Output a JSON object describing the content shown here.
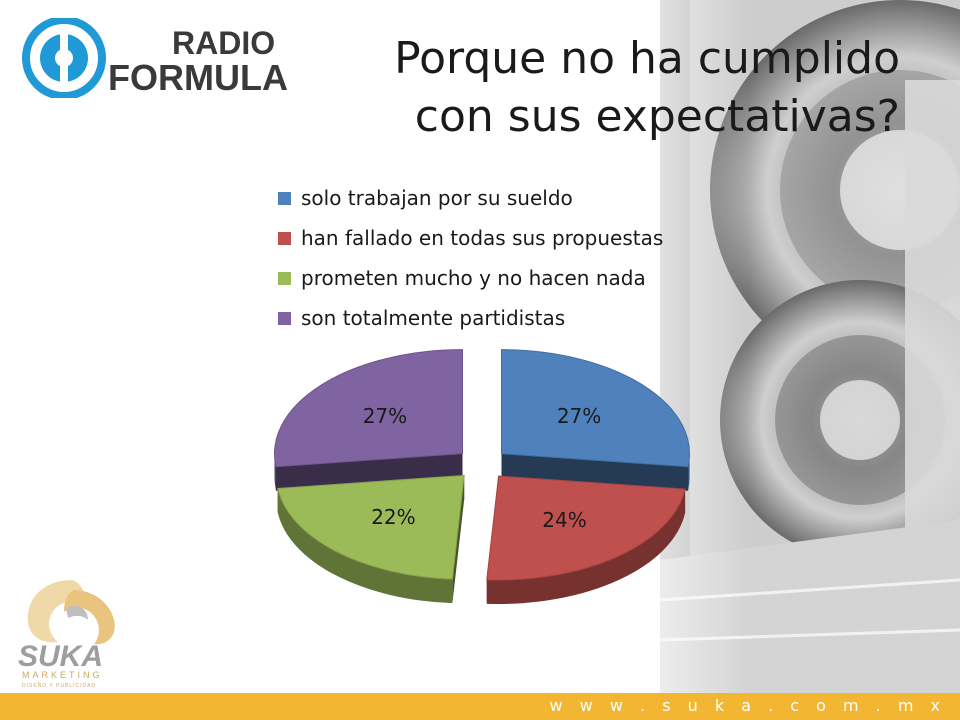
{
  "slide": {
    "title_line1": "Porque no ha cumplido",
    "title_line2": "con sus expectativas?",
    "footer_url": "w w w . s u k a . c o m . m x",
    "footer_color": "#f2b632"
  },
  "logos": {
    "radio_logo_text_top": "RADIO",
    "radio_logo_text_bottom": "FORMULA",
    "suka_logo_text": "SUKA",
    "suka_logo_sub": "MARKETING",
    "suka_logo_sub2": "DISEÑO Y PUBLICIDAD"
  },
  "chart_data": {
    "type": "pie",
    "categories": [
      "solo trabajan por su sueldo",
      "han fallado en todas sus propuestas",
      "prometen mucho y no hacen nada",
      "son totalmente partidistas"
    ],
    "values": [
      27,
      24,
      22,
      27
    ],
    "labels": [
      "27%",
      "24%",
      "22%",
      "27%"
    ],
    "colors": [
      "#4f81bd",
      "#c0504d",
      "#9bbb59",
      "#8064a2"
    ],
    "legend_position": "top"
  }
}
